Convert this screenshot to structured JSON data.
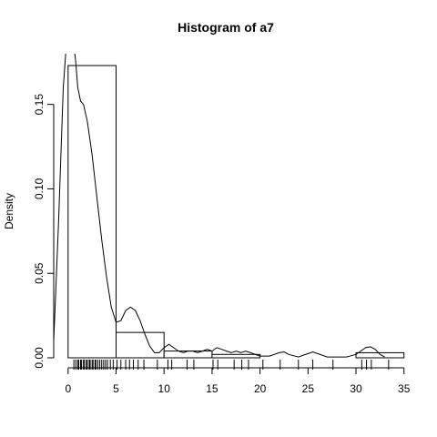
{
  "chart_data": {
    "type": "bar",
    "title": "Histogram of  a7",
    "xlabel": "",
    "ylabel": "Density",
    "xlim": [
      -1.5,
      35.5
    ],
    "ylim": [
      0,
      0.18
    ],
    "x_ticks": [
      0,
      5,
      10,
      15,
      20,
      25,
      30,
      35
    ],
    "y_ticks": [
      0.0,
      0.05,
      0.1,
      0.15
    ],
    "x_tick_labels": [
      "0",
      "5",
      "10",
      "15",
      "20",
      "25",
      "30",
      "35"
    ],
    "y_tick_labels": [
      "0.00",
      "0.05",
      "0.10",
      "0.15"
    ],
    "bins": [
      {
        "from": 0,
        "to": 5,
        "density": 0.173
      },
      {
        "from": 5,
        "to": 10,
        "density": 0.015
      },
      {
        "from": 10,
        "to": 15,
        "density": 0.004
      },
      {
        "from": 15,
        "to": 20,
        "density": 0.002
      },
      {
        "from": 20,
        "to": 25,
        "density": 0.0
      },
      {
        "from": 25,
        "to": 30,
        "density": 0.0
      },
      {
        "from": 30,
        "to": 35,
        "density": 0.003
      }
    ],
    "density_curve": {
      "x": [
        -1.5,
        -1.0,
        -0.5,
        0.0,
        0.5,
        0.8,
        1.0,
        1.3,
        1.6,
        2.0,
        2.5,
        3.0,
        3.5,
        4.0,
        4.5,
        5.0,
        5.5,
        6.0,
        6.5,
        7.0,
        7.5,
        8.0,
        8.5,
        9.0,
        9.5,
        10.0,
        10.5,
        11.0,
        11.5,
        12.0,
        12.5,
        13.0,
        13.5,
        14.0,
        14.5,
        15.0,
        15.5,
        16.0,
        16.5,
        17.0,
        17.5,
        18.0,
        18.5,
        19.0,
        19.5,
        20.0,
        21.0,
        22.0,
        22.5,
        23.0,
        24.0,
        25.0,
        25.5,
        26.0,
        27.0,
        28.0,
        29.0,
        30.0,
        30.5,
        31.0,
        31.5,
        32.0,
        32.5,
        33.0
      ],
      "y": [
        0.01,
        0.08,
        0.16,
        0.2,
        0.19,
        0.175,
        0.16,
        0.152,
        0.15,
        0.14,
        0.12,
        0.095,
        0.07,
        0.048,
        0.03,
        0.021,
        0.022,
        0.028,
        0.03,
        0.028,
        0.022,
        0.014,
        0.007,
        0.003,
        0.003,
        0.006,
        0.008,
        0.006,
        0.004,
        0.003,
        0.004,
        0.004,
        0.003,
        0.004,
        0.005,
        0.004,
        0.006,
        0.005,
        0.004,
        0.003,
        0.004,
        0.003,
        0.004,
        0.003,
        0.002,
        0.001,
        0.001,
        0.003,
        0.0035,
        0.002,
        0.0005,
        0.0025,
        0.0035,
        0.0025,
        0.0005,
        0.0005,
        0.0005,
        0.002,
        0.004,
        0.006,
        0.0065,
        0.005,
        0.002,
        0.0005
      ]
    },
    "rug": [
      0.6,
      0.8,
      1.0,
      1.1,
      1.3,
      1.4,
      1.6,
      1.7,
      1.9,
      2.0,
      2.2,
      2.3,
      2.5,
      2.6,
      2.8,
      2.9,
      3.1,
      3.3,
      3.5,
      3.7,
      3.9,
      4.1,
      4.4,
      4.7,
      5.1,
      5.5,
      6.0,
      6.4,
      6.8,
      7.3,
      7.9,
      9.3,
      10.4,
      10.8,
      12.4,
      13.1,
      15.1,
      15.6,
      17.3,
      18.1,
      18.8,
      20.3,
      22.1,
      24.0,
      25.5,
      27.6,
      30.6,
      31.1,
      31.6,
      33.4
    ],
    "grid": false,
    "legend": "none"
  }
}
